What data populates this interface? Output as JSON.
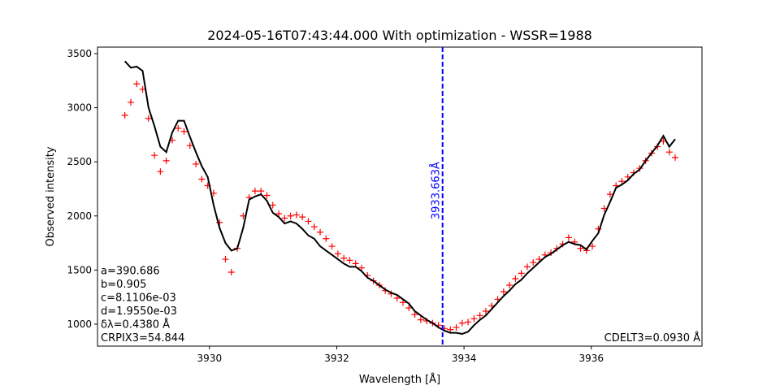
{
  "chart_data": {
    "type": "line",
    "title": "2024-05-16T07:43:44.000 With optimization - WSSR=1988",
    "x_label": "Wavelength [Å]",
    "y_label": "Observed intensity",
    "xlim": [
      3928.24,
      3937.74
    ],
    "ylim": [
      797,
      3560
    ],
    "xticks": [
      3930,
      3932,
      3934,
      3936
    ],
    "yticks": [
      1000,
      1500,
      2000,
      2500,
      3000,
      3500
    ],
    "grid": false,
    "x": [
      3928.67,
      3928.763,
      3928.856,
      3928.949,
      3929.042,
      3929.135,
      3929.228,
      3929.321,
      3929.414,
      3929.507,
      3929.6,
      3929.693,
      3929.786,
      3929.879,
      3929.972,
      3930.065,
      3930.158,
      3930.251,
      3930.344,
      3930.437,
      3930.53,
      3930.623,
      3930.716,
      3930.809,
      3930.902,
      3930.995,
      3931.088,
      3931.181,
      3931.274,
      3931.367,
      3931.46,
      3931.553,
      3931.646,
      3931.739,
      3931.832,
      3931.925,
      3932.018,
      3932.111,
      3932.204,
      3932.297,
      3932.39,
      3932.483,
      3932.576,
      3932.669,
      3932.762,
      3932.855,
      3932.948,
      3933.041,
      3933.134,
      3933.227,
      3933.32,
      3933.413,
      3933.506,
      3933.599,
      3933.692,
      3933.785,
      3933.878,
      3933.971,
      3934.064,
      3934.157,
      3934.25,
      3934.343,
      3934.436,
      3934.529,
      3934.622,
      3934.715,
      3934.808,
      3934.901,
      3934.994,
      3935.087,
      3935.18,
      3935.273,
      3935.366,
      3935.459,
      3935.552,
      3935.645,
      3935.738,
      3935.831,
      3935.924,
      3936.017,
      3936.11,
      3936.203,
      3936.296,
      3936.389,
      3936.482,
      3936.575,
      3936.668,
      3936.761,
      3936.854,
      3936.947,
      3937.04,
      3937.133,
      3937.226,
      3937.319
    ],
    "series": [
      {
        "color": "#ff0000",
        "marker": "+",
        "values": [
          2930,
          3050,
          3220,
          3170,
          2900,
          2560,
          2410,
          2510,
          2700,
          2810,
          2780,
          2650,
          2480,
          2340,
          2280,
          2210,
          1940,
          1600,
          1480,
          1700,
          2000,
          2170,
          2230,
          2230,
          2190,
          2100,
          2020,
          1980,
          2000,
          2010,
          1990,
          1950,
          1900,
          1850,
          1790,
          1720,
          1650,
          1610,
          1590,
          1560,
          1520,
          1450,
          1400,
          1360,
          1310,
          1280,
          1240,
          1200,
          1150,
          1090,
          1040,
          1030,
          1010,
          990,
          960,
          950,
          970,
          1010,
          1020,
          1050,
          1080,
          1120,
          1170,
          1230,
          1300,
          1360,
          1420,
          1470,
          1530,
          1570,
          1600,
          1640,
          1660,
          1700,
          1740,
          1800,
          1760,
          1700,
          1680,
          1720,
          1880,
          2070,
          2200,
          2280,
          2320,
          2360,
          2400,
          2440,
          2510,
          2580,
          2640,
          2690,
          2590,
          2540
        ]
      },
      {
        "color": "#000000",
        "marker": "none",
        "values": [
          3430,
          3370,
          3380,
          3340,
          3000,
          2830,
          2640,
          2590,
          2770,
          2880,
          2880,
          2730,
          2590,
          2460,
          2360,
          2100,
          1890,
          1750,
          1680,
          1700,
          1890,
          2150,
          2180,
          2200,
          2140,
          2030,
          1990,
          1930,
          1950,
          1930,
          1880,
          1820,
          1790,
          1720,
          1680,
          1640,
          1600,
          1560,
          1530,
          1530,
          1490,
          1430,
          1400,
          1360,
          1320,
          1290,
          1270,
          1230,
          1190,
          1120,
          1080,
          1040,
          1010,
          970,
          940,
          920,
          920,
          910,
          930,
          990,
          1040,
          1080,
          1140,
          1200,
          1260,
          1310,
          1370,
          1410,
          1470,
          1520,
          1570,
          1620,
          1650,
          1690,
          1730,
          1760,
          1740,
          1730,
          1690,
          1770,
          1840,
          2010,
          2130,
          2260,
          2290,
          2330,
          2390,
          2430,
          2510,
          2580,
          2650,
          2740,
          2640,
          2710
        ]
      }
    ],
    "vline": {
      "value": 3933.663,
      "label": "3933.663Å",
      "color": "#0000ff"
    },
    "annotations_left": [
      "a=390.686",
      "b=0.905",
      "c=8.1106e-03",
      "d=1.9550e-03",
      "δλ=0.4380 Å",
      "CRPIX3=54.844"
    ],
    "annotation_right": "CDELT3=0.0930 Å"
  }
}
